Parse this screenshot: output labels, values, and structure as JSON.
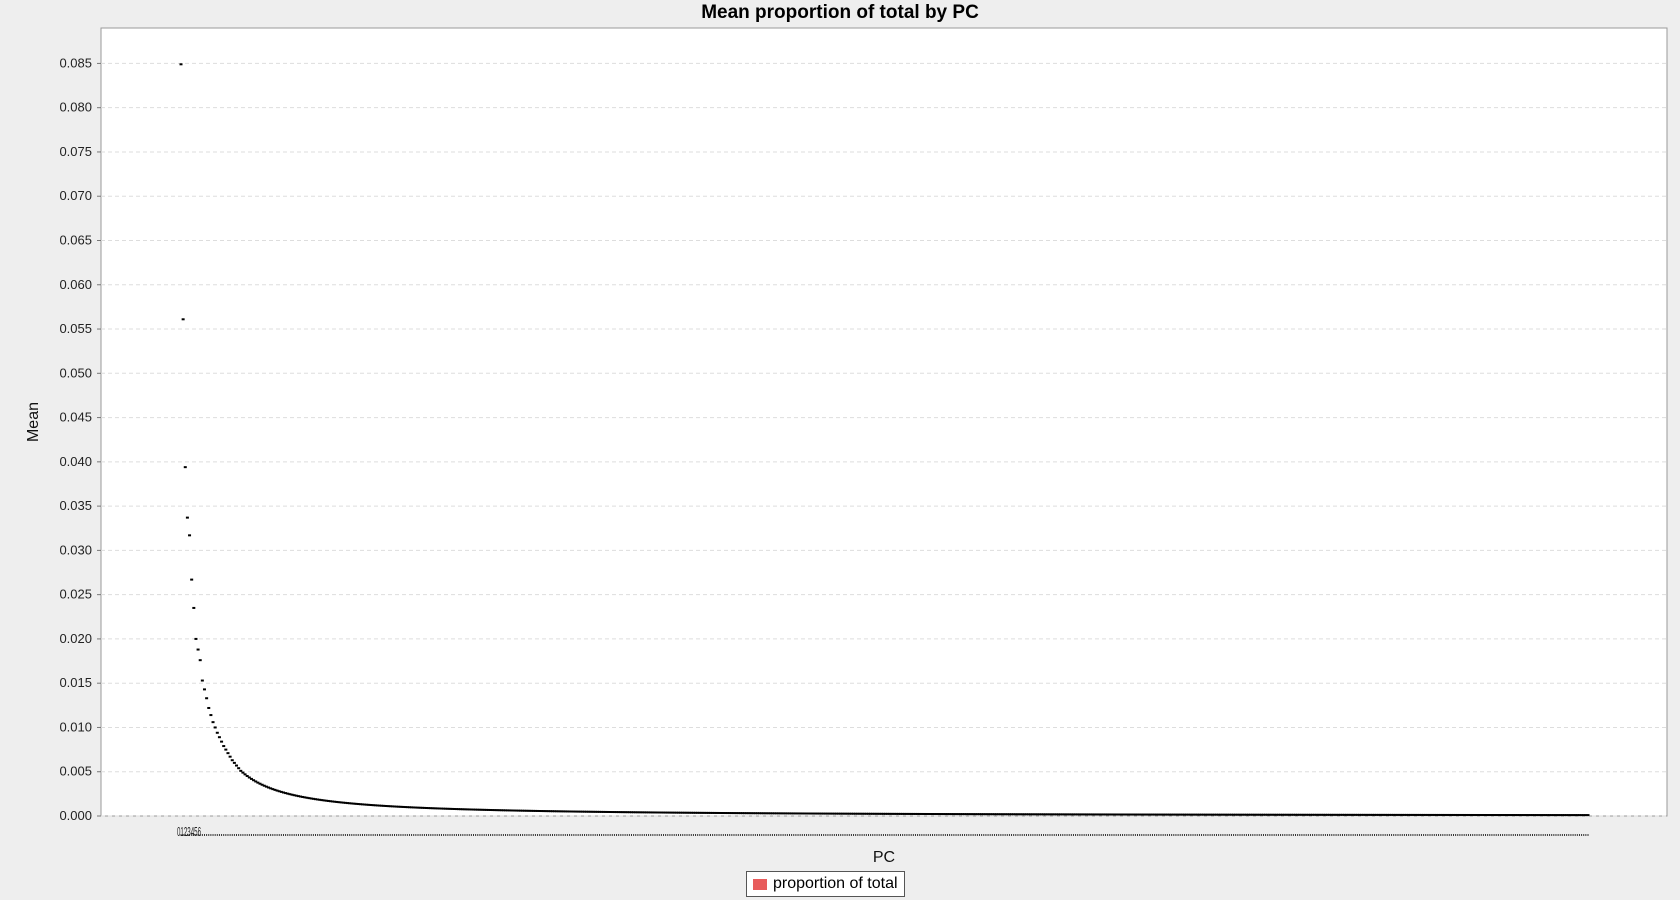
{
  "chart_data": {
    "type": "scatter",
    "title": "Mean proportion of total by PC",
    "xlabel": "PC",
    "ylabel": "Mean",
    "ylim": [
      0,
      0.089
    ],
    "y_ticks": [
      0.0,
      0.005,
      0.01,
      0.015,
      0.02,
      0.025,
      0.03,
      0.035,
      0.04,
      0.045,
      0.05,
      0.055,
      0.06,
      0.065,
      0.07,
      0.075,
      0.08,
      0.085
    ],
    "y_tick_labels": [
      "0.000",
      "0.005",
      "0.010",
      "0.015",
      "0.020",
      "0.025",
      "0.030",
      "0.035",
      "0.040",
      "0.045",
      "0.050",
      "0.055",
      "0.060",
      "0.065",
      "0.070",
      "0.075",
      "0.080",
      "0.085"
    ],
    "x_tick_label": "0123456",
    "grid": true,
    "legend_position": "bottom-center",
    "series": [
      {
        "name": "proportion of total",
        "color": "#e85c5c",
        "point_count": 660,
        "leading_values": [
          0.0849,
          0.0561,
          0.0394,
          0.0337,
          0.0317,
          0.0267,
          0.0235,
          0.02,
          0.0188,
          0.0176,
          0.0153,
          0.0143,
          0.0133,
          0.0122,
          0.0114,
          0.0106,
          0.01,
          0.0094,
          0.0089,
          0.0084,
          0.0079,
          0.0075,
          0.0071,
          0.0067,
          0.0063,
          0.006,
          0.0057,
          0.0054,
          0.0051,
          0.0049
        ],
        "tail_values_approx": 0.0001
      }
    ]
  }
}
